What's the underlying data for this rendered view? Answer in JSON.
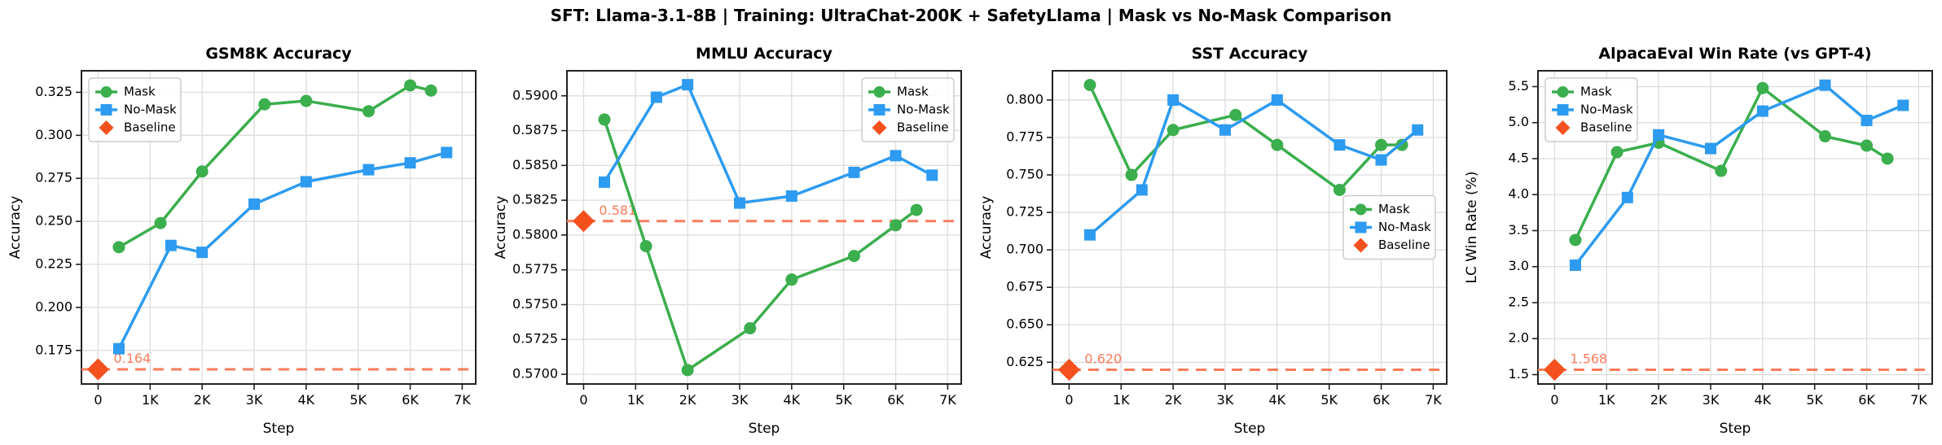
{
  "figure": {
    "suptitle": "SFT: Llama-3.1-8B  |  Training: UltraChat-200K + SafetyLlama  |  Mask vs No-Mask Comparison"
  },
  "legend": {
    "mask_label": "Mask",
    "nomask_label": "No-Mask",
    "baseline_label": "Baseline"
  },
  "colors": {
    "mask": "#3BAE4D",
    "nomask": "#2D9BF0",
    "baseline_marker": "#F4511E",
    "baseline_line": "#FB7B5B",
    "grid": "#DCDCDC",
    "spine": "#222222",
    "text": "#000000"
  },
  "chart_data": [
    {
      "type": "line",
      "title": "GSM8K Accuracy",
      "xlabel": "Step",
      "ylabel": "Accuracy",
      "xlim": [
        -320,
        7260
      ],
      "ylim": [
        0.1555,
        0.3375
      ],
      "xticks": [
        0,
        1000,
        2000,
        3000,
        4000,
        5000,
        6000,
        7000
      ],
      "xtick_labels": [
        "0",
        "1K",
        "2K",
        "3K",
        "4K",
        "5K",
        "6K",
        "7K"
      ],
      "yticks": [
        0.175,
        0.2,
        0.225,
        0.25,
        0.275,
        0.3,
        0.325
      ],
      "ytick_labels": [
        "0.175",
        "0.200",
        "0.225",
        "0.250",
        "0.275",
        "0.300",
        "0.325"
      ],
      "grid": true,
      "legend_loc": "upper left",
      "series": [
        {
          "name": "Mask",
          "marker": "circle",
          "x": [
            400,
            1200,
            2000,
            3200,
            4000,
            5200,
            6000,
            6400
          ],
          "y": [
            0.235,
            0.249,
            0.279,
            0.318,
            0.32,
            0.314,
            0.329,
            0.326
          ]
        },
        {
          "name": "No-Mask",
          "marker": "square",
          "x": [
            400,
            1400,
            2000,
            3000,
            4000,
            5200,
            6000,
            6700
          ],
          "y": [
            0.176,
            0.236,
            0.232,
            0.26,
            0.273,
            0.28,
            0.284,
            0.29
          ]
        }
      ],
      "baseline": {
        "value": 0.164,
        "label": "0.164"
      }
    },
    {
      "type": "line",
      "title": "MMLU Accuracy",
      "xlabel": "Step",
      "ylabel": "Accuracy",
      "xlim": [
        -320,
        7260
      ],
      "ylim": [
        0.5693,
        0.5918
      ],
      "xticks": [
        0,
        1000,
        2000,
        3000,
        4000,
        5000,
        6000,
        7000
      ],
      "xtick_labels": [
        "0",
        "1K",
        "2K",
        "3K",
        "4K",
        "5K",
        "6K",
        "7K"
      ],
      "yticks": [
        0.57,
        0.5725,
        0.575,
        0.5775,
        0.58,
        0.5825,
        0.585,
        0.5875,
        0.59
      ],
      "ytick_labels": [
        "0.5700",
        "0.5725",
        "0.5750",
        "0.5775",
        "0.5800",
        "0.5825",
        "0.5850",
        "0.5875",
        "0.5900"
      ],
      "grid": true,
      "legend_loc": "upper right",
      "series": [
        {
          "name": "Mask",
          "marker": "circle",
          "x": [
            400,
            1200,
            2000,
            3200,
            4000,
            5200,
            6000,
            6400
          ],
          "y": [
            0.5883,
            0.5792,
            0.5703,
            0.5733,
            0.5768,
            0.5785,
            0.5807,
            0.5818
          ]
        },
        {
          "name": "No-Mask",
          "marker": "square",
          "x": [
            400,
            1400,
            2000,
            3000,
            4000,
            5200,
            6000,
            6700
          ],
          "y": [
            0.5838,
            0.5899,
            0.5908,
            0.5823,
            0.5828,
            0.5845,
            0.5857,
            0.5843
          ]
        }
      ],
      "baseline": {
        "value": 0.581,
        "label": "0.581"
      }
    },
    {
      "type": "line",
      "title": "SST Accuracy",
      "xlabel": "Step",
      "ylabel": "Accuracy",
      "xlim": [
        -320,
        7260
      ],
      "ylim": [
        0.6105,
        0.8195
      ],
      "xticks": [
        0,
        1000,
        2000,
        3000,
        4000,
        5000,
        6000,
        7000
      ],
      "xtick_labels": [
        "0",
        "1K",
        "2K",
        "3K",
        "4K",
        "5K",
        "6K",
        "7K"
      ],
      "yticks": [
        0.625,
        0.65,
        0.675,
        0.7,
        0.725,
        0.75,
        0.775,
        0.8
      ],
      "ytick_labels": [
        "0.625",
        "0.650",
        "0.675",
        "0.700",
        "0.725",
        "0.750",
        "0.775",
        "0.800"
      ],
      "grid": true,
      "legend_loc": "center right",
      "series": [
        {
          "name": "Mask",
          "marker": "circle",
          "x": [
            400,
            1200,
            2000,
            3200,
            4000,
            5200,
            6000,
            6400
          ],
          "y": [
            0.81,
            0.75,
            0.78,
            0.79,
            0.77,
            0.74,
            0.77,
            0.77
          ]
        },
        {
          "name": "No-Mask",
          "marker": "square",
          "x": [
            400,
            1400,
            2000,
            3000,
            4000,
            5200,
            6000,
            6700
          ],
          "y": [
            0.71,
            0.74,
            0.8,
            0.78,
            0.8,
            0.77,
            0.76,
            0.78
          ]
        }
      ],
      "baseline": {
        "value": 0.62,
        "label": "0.620"
      }
    },
    {
      "type": "line",
      "title": "AlpacaEval Win Rate (vs GPT-4)",
      "xlabel": "Step",
      "ylabel": "LC Win Rate (%)",
      "xlim": [
        -320,
        7260
      ],
      "ylim": [
        1.37,
        5.72
      ],
      "xticks": [
        0,
        1000,
        2000,
        3000,
        4000,
        5000,
        6000,
        7000
      ],
      "xtick_labels": [
        "0",
        "1K",
        "2K",
        "3K",
        "4K",
        "5K",
        "6K",
        "7K"
      ],
      "yticks": [
        1.5,
        2.0,
        2.5,
        3.0,
        3.5,
        4.0,
        4.5,
        5.0,
        5.5
      ],
      "ytick_labels": [
        "1.5",
        "2.0",
        "2.5",
        "3.0",
        "3.5",
        "4.0",
        "4.5",
        "5.0",
        "5.5"
      ],
      "grid": true,
      "legend_loc": "upper left",
      "series": [
        {
          "name": "Mask",
          "marker": "circle",
          "x": [
            400,
            1200,
            2000,
            3200,
            4000,
            5200,
            6000,
            6400
          ],
          "y": [
            3.37,
            4.59,
            4.72,
            4.33,
            5.48,
            4.81,
            4.68,
            4.5
          ]
        },
        {
          "name": "No-Mask",
          "marker": "square",
          "x": [
            400,
            1400,
            2000,
            3000,
            4000,
            5200,
            6000,
            6700
          ],
          "y": [
            3.02,
            3.96,
            4.83,
            4.64,
            5.16,
            5.52,
            5.03,
            5.24
          ]
        }
      ],
      "baseline": {
        "value": 1.568,
        "label": "1.568"
      }
    }
  ]
}
